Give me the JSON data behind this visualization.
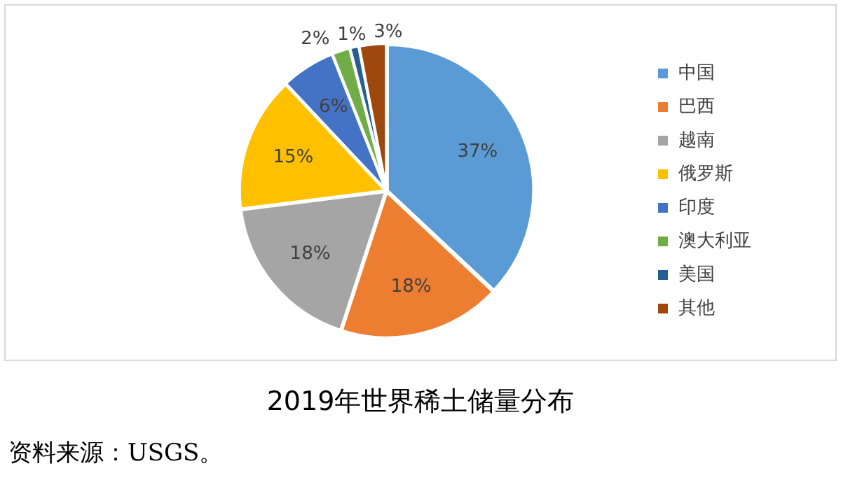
{
  "chart_data": {
    "type": "pie",
    "title": "2019年世界稀土储量分布",
    "categories": [
      "中国",
      "巴西",
      "越南",
      "俄罗斯",
      "印度",
      "澳大利亚",
      "美国",
      "其他"
    ],
    "values": [
      37,
      18,
      18,
      15,
      6,
      2,
      1,
      3
    ],
    "value_labels": [
      "37%",
      "18%",
      "18%",
      "15%",
      "6%",
      "2%",
      "1%",
      "3%"
    ],
    "colors": [
      "#5b9bd5",
      "#ed7d31",
      "#a5a5a5",
      "#ffc000",
      "#4472c4",
      "#70ad47",
      "#255e91",
      "#9e480e"
    ],
    "legend": "right",
    "annotations": [
      "资料来源：USGS。"
    ]
  }
}
